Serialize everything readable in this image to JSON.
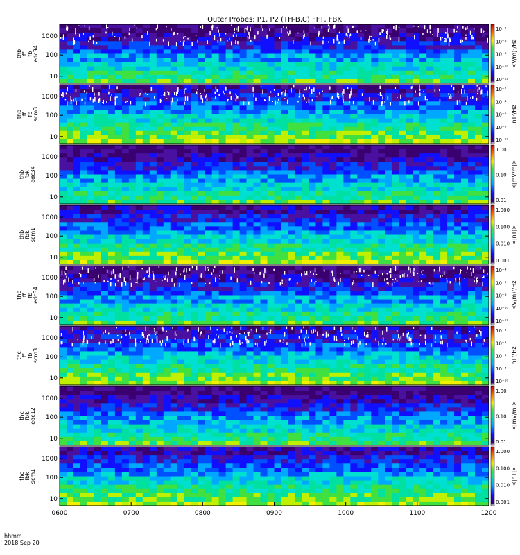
{
  "title": "Outer Probes: P1, P2 (TH-B,C) FFT, FBK",
  "time_label": "hhmm",
  "date_label": "2018 Sep 20",
  "chart_data": {
    "type": "heatmap",
    "title": "Outer Probes: P1, P2 (TH-B,C) FFT, FBK",
    "x_tick_labels": [
      "0600",
      "0700",
      "0800",
      "0900",
      "1000",
      "1100",
      "1200"
    ],
    "xlim": [
      "0600",
      "1200"
    ],
    "x_scale": "time",
    "grid": false,
    "colorbar_position": "right",
    "panels": [
      {
        "ylabel": [
          "thb",
          "ff",
          "fb",
          "edc34"
        ],
        "y_tick_labels": [
          "1000",
          "100",
          "10"
        ],
        "y_scale": "log",
        "colorbar_label": "<V/m)²/Hz",
        "colorbar_ticks": [
          "10⁻⁴",
          "10⁻⁶",
          "10⁻⁸",
          "10⁻¹⁰",
          "10⁻¹²"
        ]
      },
      {
        "ylabel": [
          "thb",
          "ff",
          "fb",
          "scm3"
        ],
        "y_tick_labels": [
          "1000",
          "100",
          "10"
        ],
        "y_scale": "log",
        "colorbar_label": "nT²/Hz",
        "colorbar_ticks": [
          "10⁻²",
          "10⁻⁴",
          "10⁻⁶",
          "10⁻⁸",
          "10⁻¹⁰"
        ]
      },
      {
        "ylabel": [
          "thb",
          "fbk",
          "edc34"
        ],
        "y_tick_labels": [
          "1000",
          "100",
          "10"
        ],
        "y_scale": "log",
        "colorbar_label": "<|mV/m|>",
        "colorbar_ticks": [
          "1.00",
          "0.10",
          "0.01"
        ]
      },
      {
        "ylabel": [
          "thb",
          "fbk",
          "scm1"
        ],
        "y_tick_labels": [
          "1000",
          "100",
          "10"
        ],
        "y_scale": "log",
        "colorbar_label": "<|nT|>",
        "colorbar_ticks": [
          "1.000",
          "0.100",
          "0.010",
          "0.001"
        ]
      },
      {
        "ylabel": [
          "thc",
          "ff",
          "fb",
          "edc34"
        ],
        "y_tick_labels": [
          "1000",
          "100",
          "10"
        ],
        "y_scale": "log",
        "colorbar_label": "<V/m)²/Hz",
        "colorbar_ticks": [
          "10⁻⁴",
          "10⁻⁶",
          "10⁻⁸",
          "10⁻¹⁰",
          "10⁻¹²"
        ]
      },
      {
        "ylabel": [
          "thc",
          "ff",
          "fb",
          "scm3"
        ],
        "y_tick_labels": [
          "1000",
          "100",
          "10"
        ],
        "y_scale": "log",
        "colorbar_label": "nT²/Hz",
        "colorbar_ticks": [
          "10⁻²",
          "10⁻⁴",
          "10⁻⁶",
          "10⁻⁸",
          "10⁻¹⁰"
        ]
      },
      {
        "ylabel": [
          "thc",
          "fbk",
          "edc12"
        ],
        "y_tick_labels": [
          "1000",
          "100",
          "10"
        ],
        "y_scale": "log",
        "colorbar_label": "<|mV/m|>",
        "colorbar_ticks": [
          "1.00",
          "0.10",
          "0.01"
        ]
      },
      {
        "ylabel": [
          "thc",
          "fbk",
          "scm1"
        ],
        "y_tick_labels": [
          "1000",
          "100",
          "10"
        ],
        "y_scale": "log",
        "colorbar_label": "<|nT|>",
        "colorbar_ticks": [
          "1.000",
          "0.100",
          "0.010",
          "0.001"
        ]
      }
    ]
  }
}
